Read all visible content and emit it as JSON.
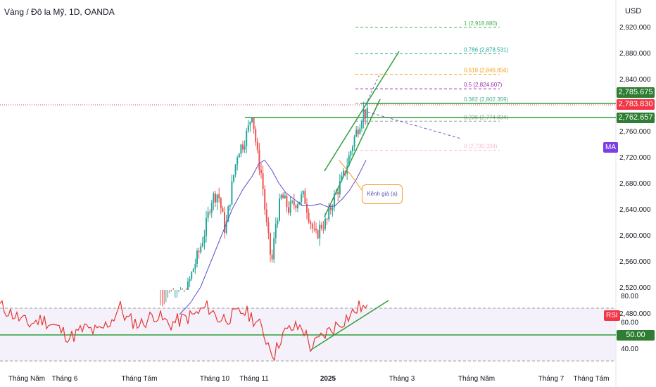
{
  "header": {
    "title": "Vàng / Đô la Mỹ, 1D, OANDA",
    "currency": "USD"
  },
  "price_tags": {
    "high": {
      "value": "2,785.675",
      "color": "#2e7d32"
    },
    "last": {
      "value": "2,783.830",
      "color": "#f23645"
    },
    "support": {
      "value": "2,762.657",
      "color": "#2e7d32"
    }
  },
  "ma_badge": {
    "label": "MA",
    "color": "#7b3fe4"
  },
  "rsi_badge": {
    "label": "RSI",
    "color": "#f23645"
  },
  "rsi_level": {
    "value": "50.00",
    "color": "#2e7d32"
  },
  "annotation": "Kênh giá (a)",
  "chart_data": {
    "type": "candlestick",
    "y_axis_ticks": [
      "2,920.000",
      "2,880.000",
      "2,840.000",
      "2,800.000",
      "2,760.000",
      "2,720.000",
      "2,680.000",
      "2,640.000",
      "2,600.000",
      "2,560.000",
      "2,520.000",
      "2,480.000"
    ],
    "x_axis_labels": [
      "Tháng Năm",
      "Tháng 6",
      "Tháng Tám",
      "Tháng 10",
      "Tháng 11",
      "2025",
      "Tháng 3",
      "Tháng Năm",
      "Tháng 7",
      "Tháng Tám"
    ],
    "fibonacci": [
      {
        "label": "1 (2,918.880)",
        "value": 2918.88,
        "color": "#4caf50"
      },
      {
        "label": "0.786 (2,878.531)",
        "value": 2878.531,
        "color": "#26a69a"
      },
      {
        "label": "0.618 (2,846.856)",
        "value": 2846.856,
        "color": "#f7a21b"
      },
      {
        "label": "0.5 (2,824.607)",
        "value": 2824.607,
        "color": "#9c27b0"
      },
      {
        "label": "0.382 (2,802.359)",
        "value": 2802.359,
        "color": "#4caf8f"
      },
      {
        "label": "0.236 (2,774.834)",
        "value": 2774.834,
        "color": "#9e9e9e"
      },
      {
        "label": "0 (2,730.334)",
        "value": 2730.334,
        "color": "#f8bbd0"
      }
    ],
    "candle_colors": {
      "up": "#26a69a",
      "down": "#ef5350"
    },
    "ma_color": "#5b4fc9",
    "rsi": {
      "ticks": [
        "80.00",
        "60.00",
        "40.00"
      ],
      "upper": 70,
      "lower": 30,
      "line_color": "#e53935"
    }
  }
}
